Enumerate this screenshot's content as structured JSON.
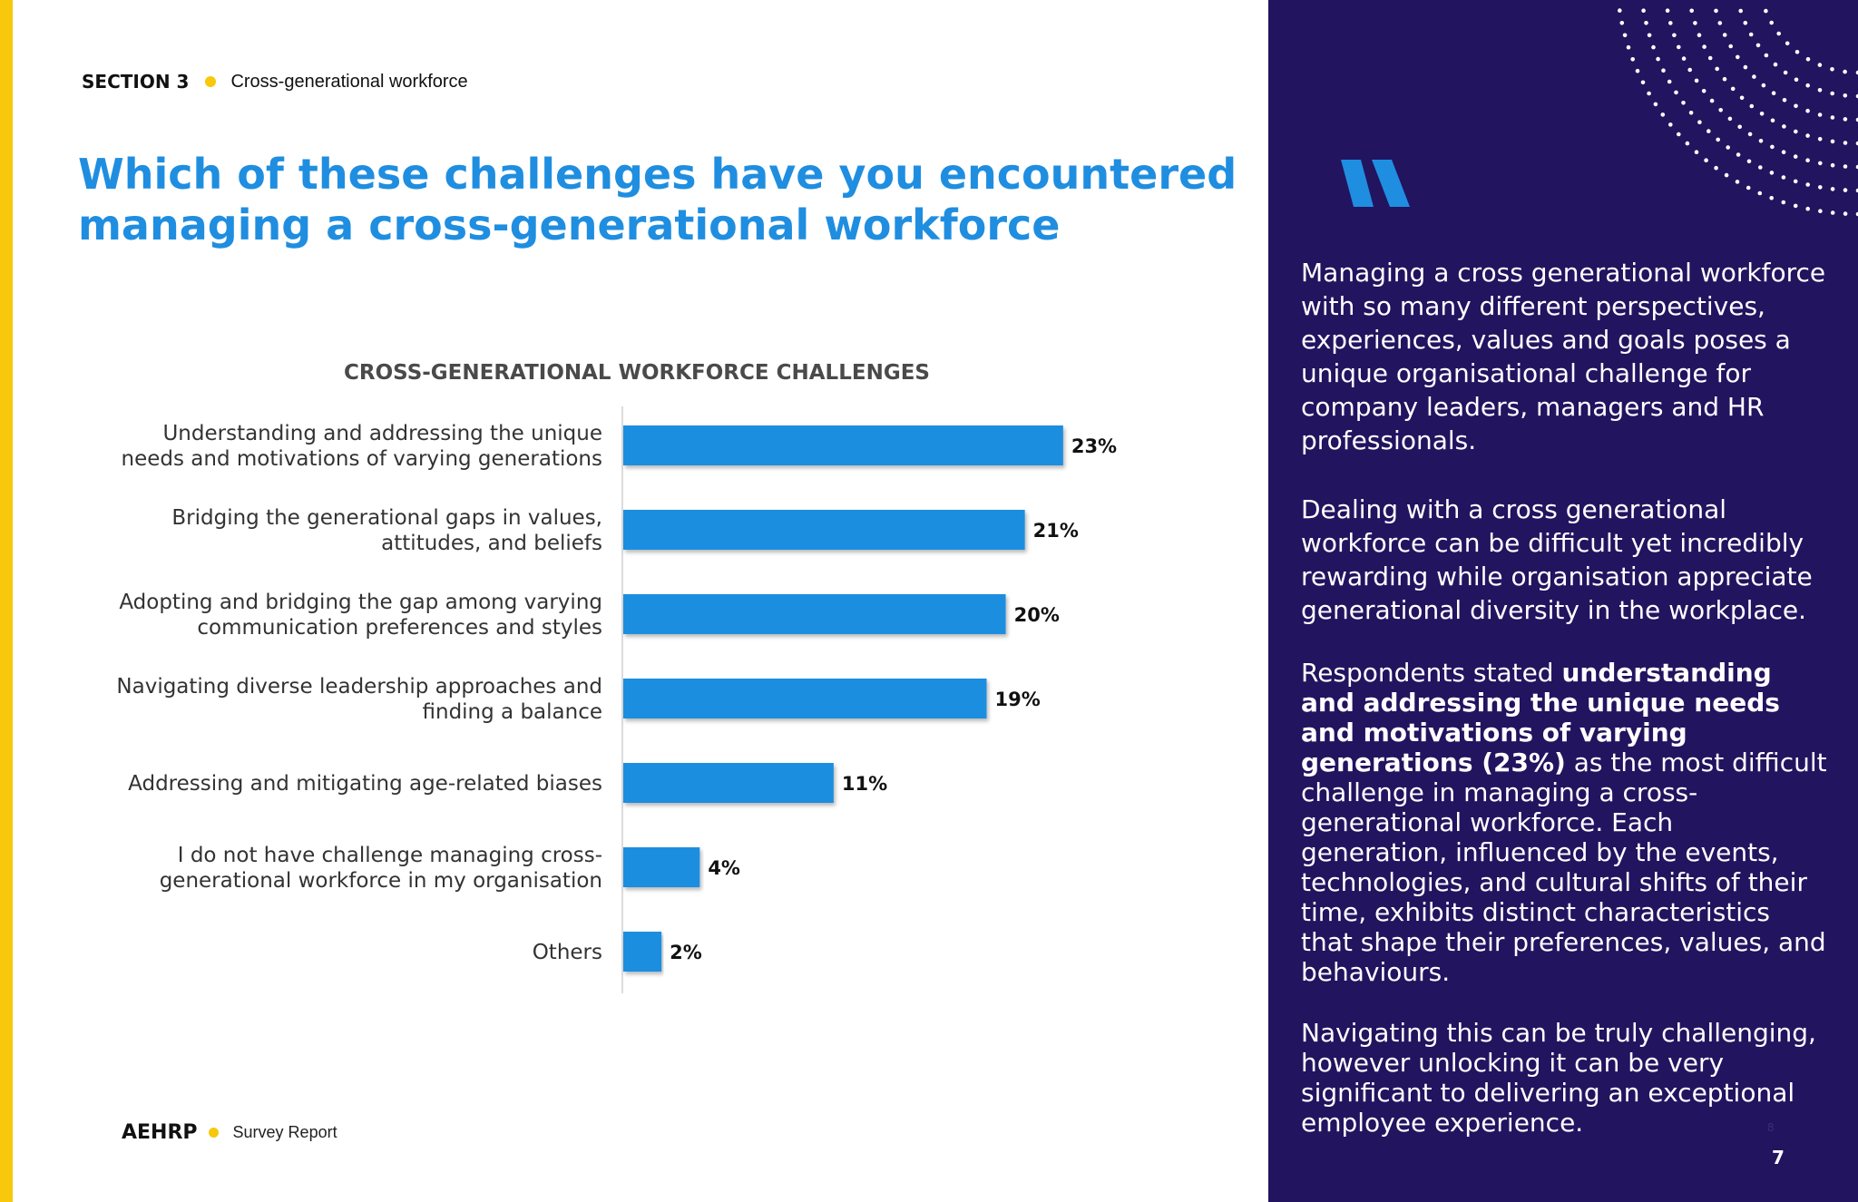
{
  "header": {
    "section_label": "SECTION 3",
    "section_topic": "Cross-generational workforce"
  },
  "title": "Which of these challenges have you encountered managing a cross-generational workforce",
  "chart_data": {
    "type": "bar",
    "orientation": "horizontal",
    "title": "CROSS-GENERATIONAL WORKFORCE CHALLENGES",
    "categories": [
      [
        "Understanding and addressing the unique",
        "needs and motivations of varying generations"
      ],
      [
        "Bridging the generational gaps in values,",
        "attitudes, and beliefs"
      ],
      [
        "Adopting and bridging the gap among varying",
        "communication preferences and styles"
      ],
      [
        "Navigating diverse leadership approaches and",
        "finding a balance"
      ],
      [
        "Addressing and mitigating age-related biases"
      ],
      [
        "I do not have challenge managing cross-",
        "generational workforce in my organisation"
      ],
      [
        "Others"
      ]
    ],
    "values": [
      23,
      21,
      20,
      19,
      11,
      4,
      2
    ],
    "value_labels": [
      "23%",
      "21%",
      "20%",
      "19%",
      "11%",
      "4%",
      "2%"
    ],
    "unit": "%",
    "xlim": [
      0,
      25
    ],
    "grid": false,
    "legend": "none",
    "bar_color": "#1f8ee0"
  },
  "sidebar": {
    "quote_icon": "quote-mark-icon",
    "p1": "Managing a cross generational workforce with so many different perspectives, experiences, values and goals poses a unique organisational challenge for company leaders, managers and HR professionals.",
    "p2": "Dealing with a cross generational workforce can be difficult yet incredibly rewarding while organisation appreciate generational diversity in the workplace.",
    "p3_intro": "Respondents stated ",
    "p3_bold": "understanding and addressing the unique needs and motivations of varying generations (23%)",
    "p3_rest": " as the most difficult challenge in managing a cross-generational workforce. Each generation, influenced by the events, technologies, and cultural shifts of their time, exhibits distinct characteristics that shape their preferences, values, and behaviours.",
    "p4": "Navigating this can be truly challenging, however unlocking it can be very significant to delivering an exceptional employee experience.",
    "ghost_number": "8",
    "page_number": "7"
  },
  "footer": {
    "brand": "AEHRP",
    "report": "Survey Report"
  },
  "colors": {
    "accent_blue": "#1f8ee0",
    "accent_yellow": "#f7c80b",
    "sidebar_bg": "#22145f"
  }
}
